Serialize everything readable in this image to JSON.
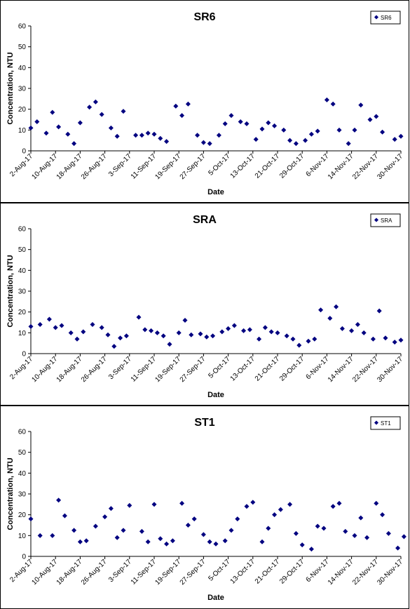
{
  "colors": {
    "marker": "#000080",
    "axis": "#000000",
    "text": "#000000"
  },
  "chart_data": [
    {
      "type": "scatter",
      "title": "SR6",
      "xlabel": "Date",
      "ylabel": "Concentration, NTU",
      "ylim": [
        0,
        60
      ],
      "yticks": [
        "0",
        "10",
        "20",
        "30",
        "40",
        "50",
        "60"
      ],
      "xlim": [
        "2017-08-02",
        "2017-11-30"
      ],
      "xticks": [
        "2-Aug-17",
        "10-Aug-17",
        "18-Aug-17",
        "26-Aug-17",
        "3-Sep-17",
        "11-Sep-17",
        "19-Sep-17",
        "27-Sep-17",
        "5-Oct-17",
        "13-Oct-17",
        "21-Oct-17",
        "29-Oct-17",
        "6-Nov-17",
        "14-Nov-17",
        "22-Nov-17",
        "30-Nov-17"
      ],
      "grid": false,
      "legend": "top-right",
      "series": [
        {
          "name": "SR6",
          "x": [
            "2017-08-02",
            "2017-08-04",
            "2017-08-07",
            "2017-08-09",
            "2017-08-11",
            "2017-08-14",
            "2017-08-16",
            "2017-08-18",
            "2017-08-21",
            "2017-08-23",
            "2017-08-25",
            "2017-08-28",
            "2017-08-30",
            "2017-09-01",
            "2017-09-05",
            "2017-09-07",
            "2017-09-09",
            "2017-09-11",
            "2017-09-13",
            "2017-09-15",
            "2017-09-18",
            "2017-09-20",
            "2017-09-22",
            "2017-09-25",
            "2017-09-27",
            "2017-09-29",
            "2017-10-02",
            "2017-10-04",
            "2017-10-06",
            "2017-10-09",
            "2017-10-11",
            "2017-10-14",
            "2017-10-16",
            "2017-10-18",
            "2017-10-20",
            "2017-10-23",
            "2017-10-25",
            "2017-10-27",
            "2017-10-30",
            "2017-11-01",
            "2017-11-03",
            "2017-11-06",
            "2017-11-08",
            "2017-11-10",
            "2017-11-13",
            "2017-11-15",
            "2017-11-17",
            "2017-11-20",
            "2017-11-22",
            "2017-11-24",
            "2017-11-28",
            "2017-11-30"
          ],
          "y": [
            11,
            14,
            8.5,
            18.5,
            11.5,
            8,
            3.5,
            13.5,
            21,
            23.5,
            17.5,
            11,
            7,
            19,
            7.5,
            7.5,
            8.5,
            8,
            6,
            4.5,
            21.5,
            17,
            22.5,
            7.5,
            4,
            3.5,
            7.5,
            13,
            17,
            14,
            13,
            5.5,
            10.5,
            13.5,
            12,
            10,
            5,
            3.5,
            5,
            8,
            9.5,
            24.5,
            22.5,
            10,
            3.5,
            10,
            22,
            15,
            16.5,
            9,
            5.5,
            7
          ]
        }
      ]
    },
    {
      "type": "scatter",
      "title": "SRA",
      "xlabel": "Date",
      "ylabel": "Concentration, NTU",
      "ylim": [
        0,
        60
      ],
      "yticks": [
        "0",
        "10",
        "20",
        "30",
        "40",
        "50",
        "60"
      ],
      "xlim": [
        "2017-08-02",
        "2017-11-30"
      ],
      "xticks": [
        "2-Aug-17",
        "10-Aug-17",
        "18-Aug-17",
        "26-Aug-17",
        "3-Sep-17",
        "11-Sep-17",
        "19-Sep-17",
        "27-Sep-17",
        "5-Oct-17",
        "13-Oct-17",
        "21-Oct-17",
        "29-Oct-17",
        "6-Nov-17",
        "14-Nov-17",
        "22-Nov-17",
        "30-Nov-17"
      ],
      "grid": false,
      "legend": "top-right",
      "series": [
        {
          "name": "SRA",
          "x": [
            "2017-08-02",
            "2017-08-05",
            "2017-08-08",
            "2017-08-10",
            "2017-08-12",
            "2017-08-15",
            "2017-08-17",
            "2017-08-19",
            "2017-08-22",
            "2017-08-25",
            "2017-08-27",
            "2017-08-29",
            "2017-08-31",
            "2017-09-02",
            "2017-09-06",
            "2017-09-08",
            "2017-09-10",
            "2017-09-12",
            "2017-09-14",
            "2017-09-16",
            "2017-09-19",
            "2017-09-21",
            "2017-09-23",
            "2017-09-26",
            "2017-09-28",
            "2017-09-30",
            "2017-10-03",
            "2017-10-05",
            "2017-10-07",
            "2017-10-10",
            "2017-10-12",
            "2017-10-15",
            "2017-10-17",
            "2017-10-19",
            "2017-10-21",
            "2017-10-24",
            "2017-10-26",
            "2017-10-28",
            "2017-10-31",
            "2017-11-02",
            "2017-11-04",
            "2017-11-07",
            "2017-11-09",
            "2017-11-11",
            "2017-11-14",
            "2017-11-16",
            "2017-11-18",
            "2017-11-21",
            "2017-11-23",
            "2017-11-25",
            "2017-11-28",
            "2017-11-30"
          ],
          "y": [
            13,
            14,
            16.5,
            12.5,
            13.5,
            10,
            7,
            10.5,
            14,
            12.5,
            9,
            3.5,
            7.5,
            8.5,
            17.5,
            11.5,
            11,
            10,
            8.5,
            4.5,
            10,
            16,
            9,
            9.5,
            8,
            8.5,
            10.5,
            12,
            13.5,
            11,
            11.5,
            7,
            12.5,
            10.5,
            10,
            8.5,
            7,
            4,
            6,
            7,
            21,
            17,
            22.5,
            12,
            11,
            14,
            10,
            7,
            20.5,
            7.5,
            5.5,
            6.5
          ]
        }
      ]
    },
    {
      "type": "scatter",
      "title": "ST1",
      "xlabel": "Date",
      "ylabel": "Concentration, NTU",
      "ylim": [
        0,
        60
      ],
      "yticks": [
        "0",
        "10",
        "20",
        "30",
        "40",
        "50",
        "60"
      ],
      "xlim": [
        "2017-08-02",
        "2017-11-30"
      ],
      "xticks": [
        "2-Aug-17",
        "10-Aug-17",
        "18-Aug-17",
        "26-Aug-17",
        "3-Sep-17",
        "11-Sep-17",
        "19-Sep-17",
        "27-Sep-17",
        "5-Oct-17",
        "13-Oct-17",
        "21-Oct-17",
        "29-Oct-17",
        "6-Nov-17",
        "14-Nov-17",
        "22-Nov-17",
        "30-Nov-17"
      ],
      "grid": false,
      "legend": "top-right",
      "series": [
        {
          "name": "ST1",
          "x": [
            "2017-08-02",
            "2017-08-05",
            "2017-08-09",
            "2017-08-11",
            "2017-08-13",
            "2017-08-16",
            "2017-08-18",
            "2017-08-20",
            "2017-08-23",
            "2017-08-26",
            "2017-08-28",
            "2017-08-30",
            "2017-09-01",
            "2017-09-03",
            "2017-09-07",
            "2017-09-09",
            "2017-09-11",
            "2017-09-13",
            "2017-09-15",
            "2017-09-17",
            "2017-09-20",
            "2017-09-22",
            "2017-09-24",
            "2017-09-27",
            "2017-09-29",
            "2017-10-01",
            "2017-10-04",
            "2017-10-06",
            "2017-10-08",
            "2017-10-11",
            "2017-10-13",
            "2017-10-16",
            "2017-10-18",
            "2017-10-20",
            "2017-10-22",
            "2017-10-25",
            "2017-10-27",
            "2017-10-29",
            "2017-11-01",
            "2017-11-03",
            "2017-11-05",
            "2017-11-08",
            "2017-11-10",
            "2017-11-12",
            "2017-11-15",
            "2017-11-17",
            "2017-11-19",
            "2017-11-22",
            "2017-11-24",
            "2017-11-26",
            "2017-11-29",
            "2017-12-01"
          ],
          "y": [
            18,
            10,
            10,
            27,
            19.5,
            12.5,
            7,
            7.5,
            14.5,
            19,
            23,
            9,
            12.5,
            24.5,
            12,
            7,
            25,
            8.5,
            6,
            7.5,
            25.5,
            15,
            18,
            10.5,
            7,
            6,
            7.5,
            12.5,
            18,
            24,
            26,
            7,
            13.5,
            20,
            22.5,
            25,
            11,
            5.5,
            3.5,
            14.5,
            13.5,
            24,
            25.5,
            12,
            10,
            18.5,
            9,
            25.5,
            20,
            11,
            4,
            9.5
          ]
        }
      ]
    }
  ]
}
